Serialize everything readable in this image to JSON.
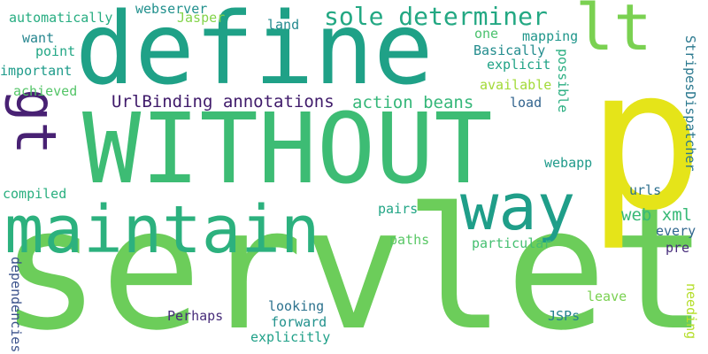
{
  "words": [
    {
      "id": "servlet",
      "text": "servlet",
      "color": "#6ccd5a",
      "rotated": false
    },
    {
      "id": "define",
      "text": "define",
      "color": "#1fa187",
      "rotated": false
    },
    {
      "id": "without",
      "text": "WITHOUT",
      "color": "#3dbc74",
      "rotated": false
    },
    {
      "id": "maintain",
      "text": "maintain",
      "color": "#2cb17e",
      "rotated": false
    },
    {
      "id": "p",
      "text": "p",
      "color": "#e5e419",
      "rotated": false
    },
    {
      "id": "lt",
      "text": "lt",
      "color": "#7ad151",
      "rotated": false
    },
    {
      "id": "gt",
      "text": "gt",
      "color": "#482173",
      "rotated": true
    },
    {
      "id": "way",
      "text": "way",
      "color": "#1f9e89",
      "rotated": false
    },
    {
      "id": "sole-determiner",
      "text": "sole determiner",
      "color": "#23a883",
      "rotated": false
    },
    {
      "id": "urlbinding-annotations",
      "text": "UrlBinding annotations",
      "color": "#3f1a6a",
      "rotated": false
    },
    {
      "id": "action-beans",
      "text": "action beans",
      "color": "#35b779",
      "rotated": false
    },
    {
      "id": "web-xml",
      "text": "web xml",
      "color": "#38b977",
      "rotated": false
    },
    {
      "id": "automatically",
      "text": "automatically",
      "color": "#27ad81",
      "rotated": false
    },
    {
      "id": "webserver",
      "text": "webserver",
      "color": "#21908d",
      "rotated": false
    },
    {
      "id": "jasper",
      "text": "Jasper",
      "color": "#84d44b",
      "rotated": false
    },
    {
      "id": "want",
      "text": "want",
      "color": "#25858e",
      "rotated": false
    },
    {
      "id": "land",
      "text": "land",
      "color": "#23898e",
      "rotated": false
    },
    {
      "id": "point",
      "text": "point",
      "color": "#22a785",
      "rotated": false
    },
    {
      "id": "one",
      "text": "one",
      "color": "#4ac16d",
      "rotated": false
    },
    {
      "id": "mapping",
      "text": "mapping",
      "color": "#1f968b",
      "rotated": false
    },
    {
      "id": "basically",
      "text": "Basically",
      "color": "#228c8d",
      "rotated": false
    },
    {
      "id": "explicit",
      "text": "explicit",
      "color": "#20a386",
      "rotated": false
    },
    {
      "id": "important",
      "text": "important",
      "color": "#1e9b8a",
      "rotated": false
    },
    {
      "id": "available",
      "text": "available",
      "color": "#a2da37",
      "rotated": false
    },
    {
      "id": "achieved",
      "text": "achieved",
      "color": "#54c568",
      "rotated": false
    },
    {
      "id": "load",
      "text": "load",
      "color": "#32648e",
      "rotated": false
    },
    {
      "id": "possible",
      "text": "possible",
      "color": "#28ae80",
      "rotated": true
    },
    {
      "id": "stripesdispatcher",
      "text": "StripesDispatcher",
      "color": "#2a788e",
      "rotated": true
    },
    {
      "id": "webapp",
      "text": "webapp",
      "color": "#1f9a8a",
      "rotated": false
    },
    {
      "id": "compiled",
      "text": "compiled",
      "color": "#29af7f",
      "rotated": false
    },
    {
      "id": "urls",
      "text": "urls",
      "color": "#2d708e",
      "rotated": false
    },
    {
      "id": "pairs",
      "text": "pairs",
      "color": "#21a585",
      "rotated": false
    },
    {
      "id": "every",
      "text": "every",
      "color": "#31678e",
      "rotated": false
    },
    {
      "id": "paths",
      "text": "paths",
      "color": "#58c765",
      "rotated": false
    },
    {
      "id": "particular",
      "text": "particular",
      "color": "#44bf70",
      "rotated": false
    },
    {
      "id": "pre",
      "text": "pre",
      "color": "#472d7b",
      "rotated": false
    },
    {
      "id": "dependencies",
      "text": "dependencies",
      "color": "#3b528b",
      "rotated": true
    },
    {
      "id": "leave",
      "text": "leave",
      "color": "#7ad151",
      "rotated": false
    },
    {
      "id": "needing",
      "text": "needing",
      "color": "#b5de2b",
      "rotated": true
    },
    {
      "id": "looking",
      "text": "looking",
      "color": "#2c728e",
      "rotated": false
    },
    {
      "id": "perhaps",
      "text": "Perhaps",
      "color": "#472c7a",
      "rotated": false
    },
    {
      "id": "forward",
      "text": "forward",
      "color": "#21918c",
      "rotated": false
    },
    {
      "id": "jsps",
      "text": "JSPs",
      "color": "#26828e",
      "rotated": false
    },
    {
      "id": "explicitly",
      "text": "explicitly",
      "color": "#1fa088",
      "rotated": false
    }
  ]
}
